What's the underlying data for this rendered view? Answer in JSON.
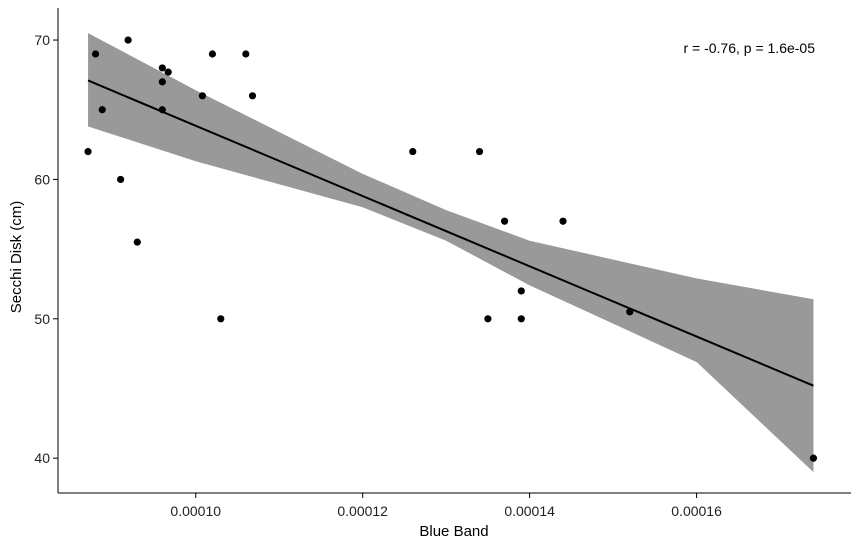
{
  "chart_data": {
    "type": "scatter",
    "title": "",
    "xlabel": "Blue Band",
    "ylabel": "Secchi Disk (cm)",
    "annotation": "r = -0.76, p = 1.6e-05",
    "xlim": [
      8.35e-05,
      0.0001785
    ],
    "ylim": [
      37.5,
      72.3
    ],
    "xticks": [
      0.0001,
      0.00012,
      0.00014,
      0.00016
    ],
    "xtick_labels": [
      "0.00010",
      "0.00012",
      "0.00014",
      "0.00016"
    ],
    "yticks": [
      40,
      50,
      60,
      70
    ],
    "ytick_labels": [
      "40",
      "50",
      "60",
      "70"
    ],
    "grid": false,
    "points": [
      {
        "x": 8.71e-05,
        "y": 62
      },
      {
        "x": 8.8e-05,
        "y": 69
      },
      {
        "x": 8.88e-05,
        "y": 65
      },
      {
        "x": 9.1e-05,
        "y": 60
      },
      {
        "x": 9.19e-05,
        "y": 70
      },
      {
        "x": 9.3e-05,
        "y": 55.5
      },
      {
        "x": 9.6e-05,
        "y": 68
      },
      {
        "x": 9.6e-05,
        "y": 67
      },
      {
        "x": 9.6e-05,
        "y": 65
      },
      {
        "x": 9.67e-05,
        "y": 67.7
      },
      {
        "x": 0.0001008,
        "y": 66
      },
      {
        "x": 0.000102,
        "y": 69
      },
      {
        "x": 0.000103,
        "y": 50
      },
      {
        "x": 0.000106,
        "y": 69
      },
      {
        "x": 0.0001068,
        "y": 66
      },
      {
        "x": 0.000126,
        "y": 62
      },
      {
        "x": 0.000134,
        "y": 62
      },
      {
        "x": 0.000135,
        "y": 50
      },
      {
        "x": 0.000137,
        "y": 57
      },
      {
        "x": 0.000139,
        "y": 52
      },
      {
        "x": 0.000139,
        "y": 50
      },
      {
        "x": 0.000144,
        "y": 57
      },
      {
        "x": 0.000152,
        "y": 50.5
      },
      {
        "x": 0.000174,
        "y": 40
      }
    ],
    "regression": {
      "x": [
        8.71e-05,
        0.000174
      ],
      "y": [
        67.1,
        45.2
      ]
    },
    "confidence_band": {
      "x": [
        8.71e-05,
        0.0001,
        0.00012,
        0.00013,
        0.00014,
        0.00016,
        0.000174
      ],
      "upper": [
        70.5,
        66.4,
        60.4,
        57.8,
        55.6,
        52.9,
        51.4
      ],
      "lower": [
        63.8,
        61.3,
        58.0,
        55.6,
        52.4,
        46.9,
        39.0
      ]
    },
    "colors": {
      "points": "#000000",
      "line": "#000000",
      "band": "#999999",
      "axis": "#000000"
    }
  }
}
